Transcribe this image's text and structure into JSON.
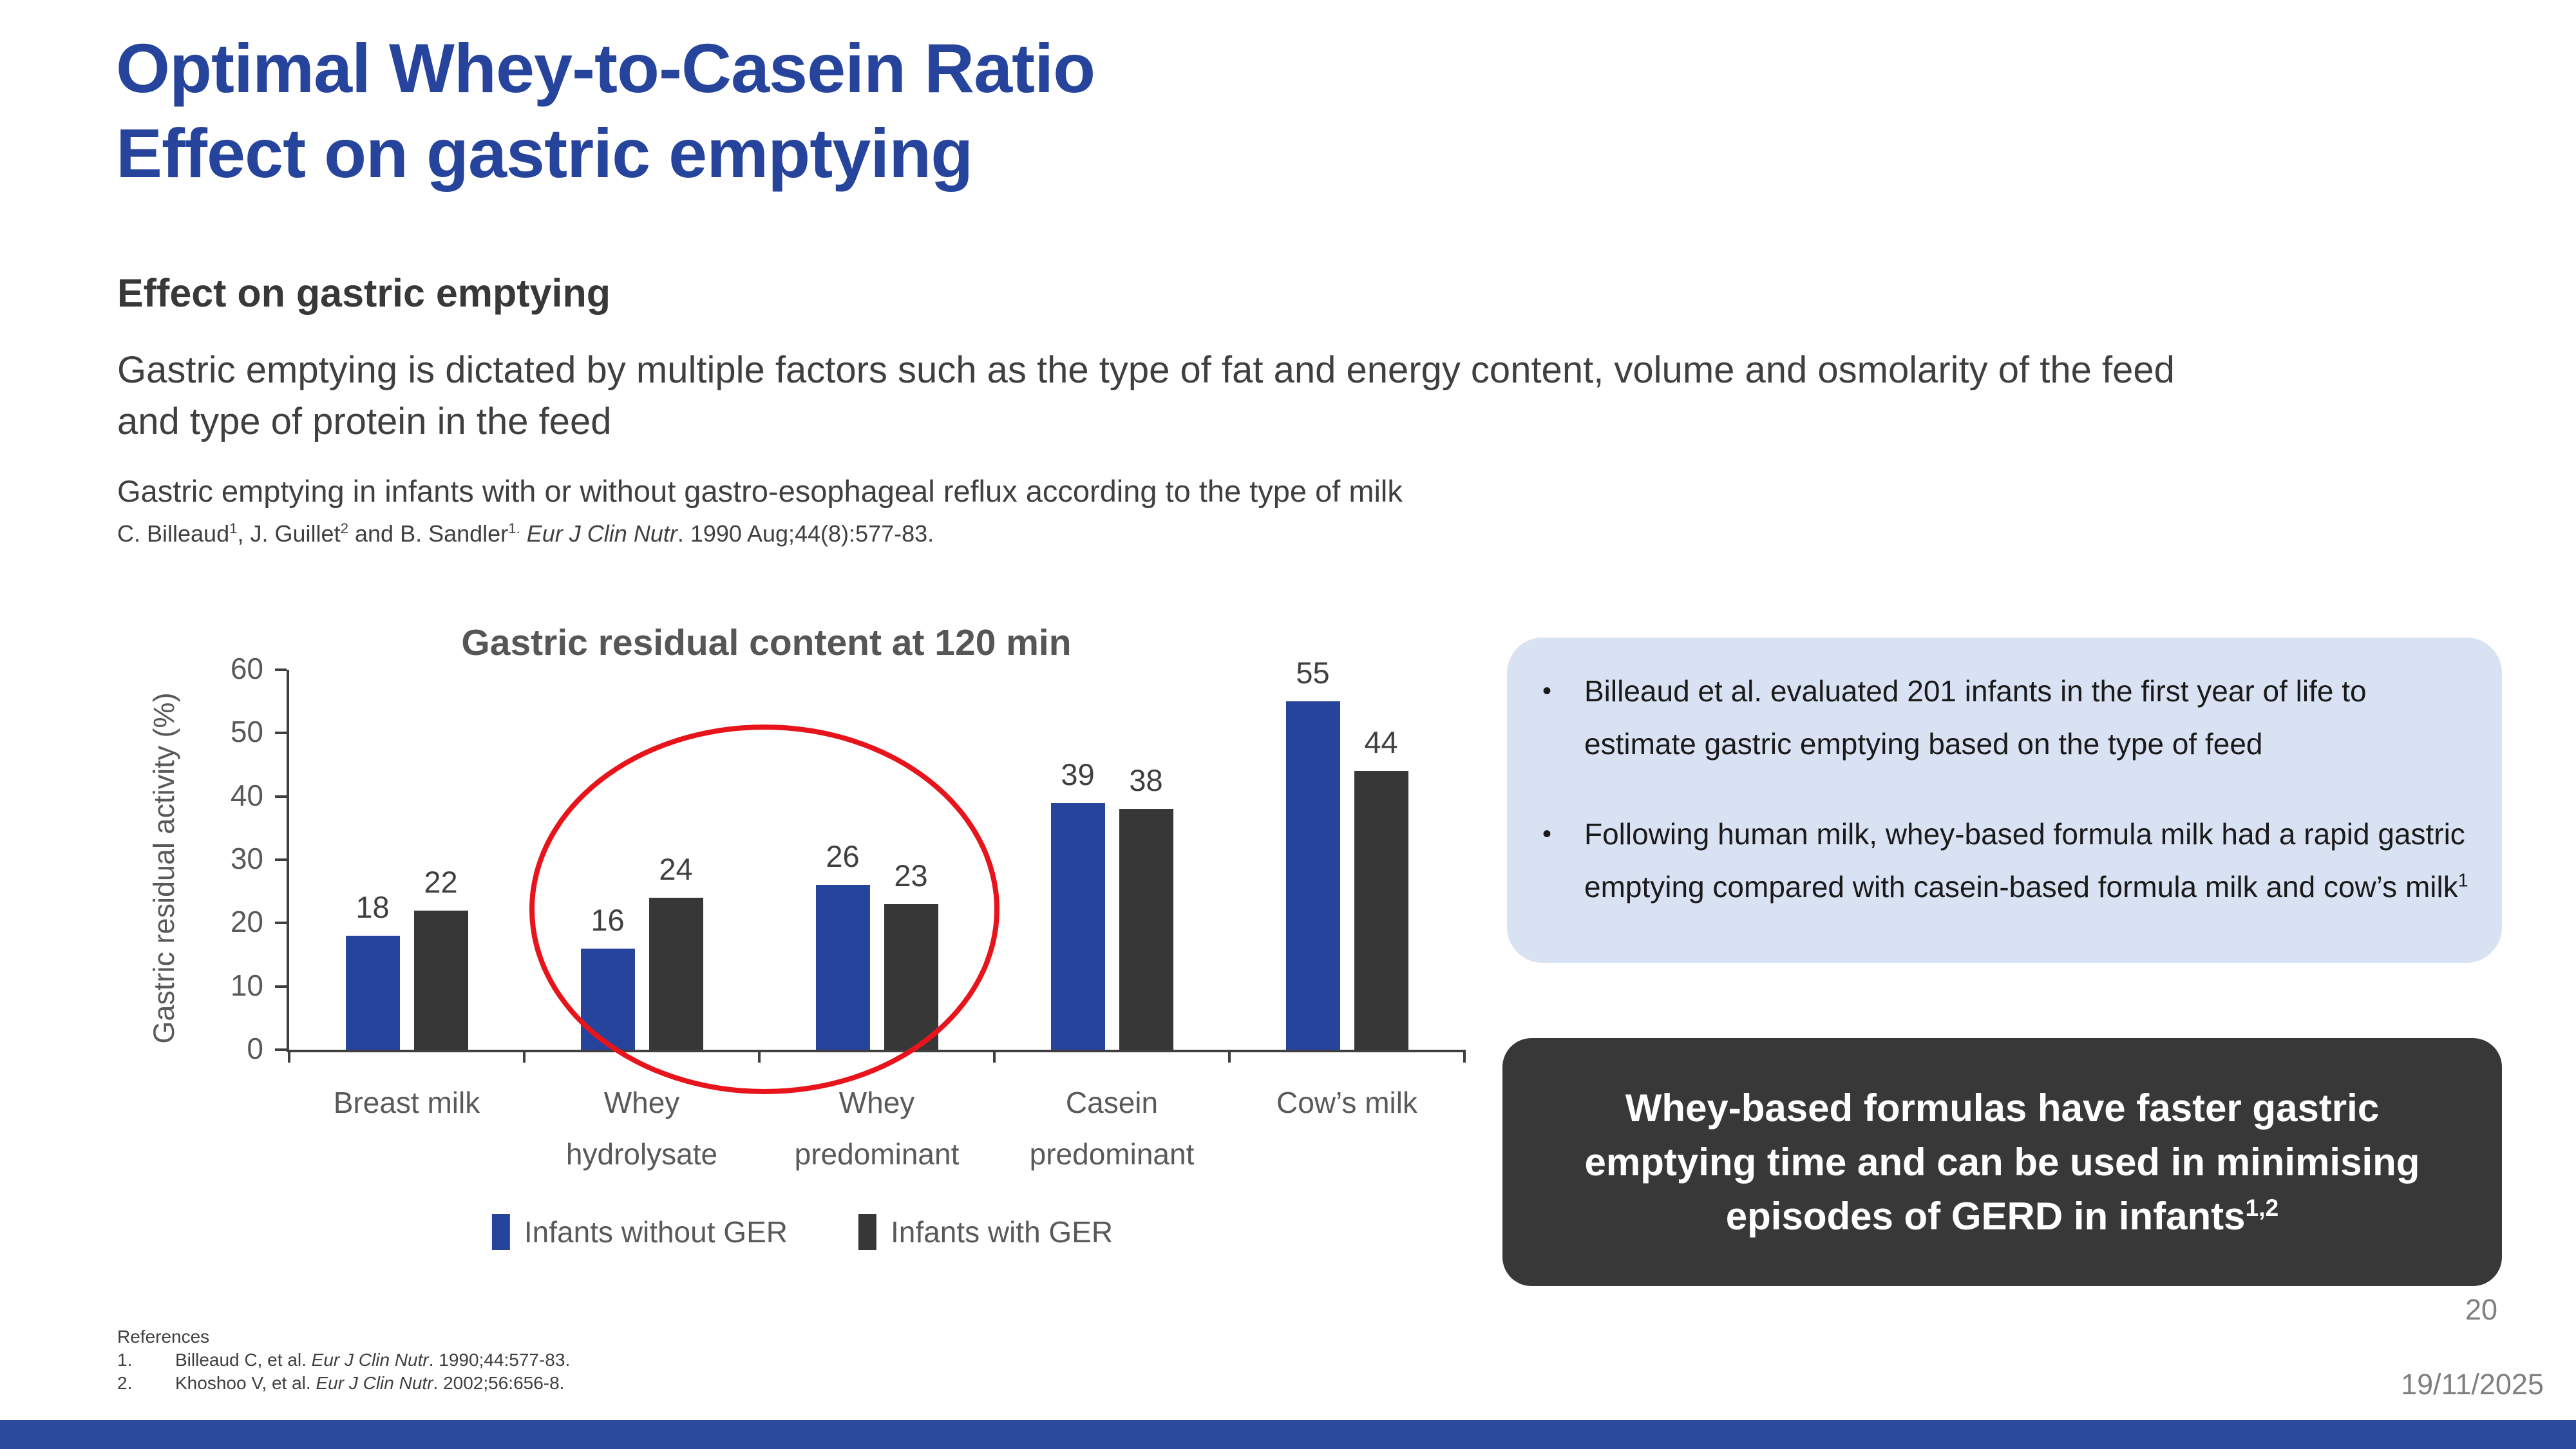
{
  "slide": {
    "title_line1": "Optimal Whey-to-Casein Ratio",
    "title_line2": "Effect on gastric emptying",
    "section_heading": "Effect on gastric emptying",
    "paragraph": "Gastric emptying is dictated by multiple factors such as the type of fat and energy content, volume and osmolarity of the feed and type of protein in the feed",
    "study_line": "Gastric emptying in infants with or without gastro-esophageal reflux according to the type of milk",
    "citation": {
      "p1": "C. Billeaud",
      "s1": "1",
      "p2": ", J. Guillet",
      "s2": "2",
      "p3": " and B. Sandler",
      "s3": "1.",
      "journal": " Eur J Clin Nutr",
      "tail": ". 1990 Aug;44(8):577-83."
    },
    "bullet_char": "•",
    "page_number": "20",
    "date": "19/11/2025"
  },
  "chart_data": {
    "type": "bar",
    "title": "Gastric residual content at 120 min",
    "xlabel": "",
    "ylabel": "Gastric residual activity (%)",
    "ylim": [
      0,
      60
    ],
    "yticks": [
      0,
      10,
      20,
      30,
      40,
      50,
      60
    ],
    "grid": false,
    "legend_position": "bottom",
    "categories": [
      "Breast milk",
      "Whey hydrolysate",
      "Whey predominant",
      "Casein predominant",
      "Cow’s milk"
    ],
    "categories_lines": [
      [
        "Breast milk"
      ],
      [
        "Whey",
        "hydrolysate"
      ],
      [
        "Whey",
        "predominant"
      ],
      [
        "Casein",
        "predominant"
      ],
      [
        "Cow’s milk"
      ]
    ],
    "series": [
      {
        "name": "Infants without GER",
        "color": "#26449C",
        "values": [
          18,
          16,
          26,
          39,
          55
        ]
      },
      {
        "name": "Infants with GER",
        "color": "#373737",
        "values": [
          22,
          24,
          23,
          38,
          44
        ]
      }
    ],
    "annotation": {
      "shape": "ellipse",
      "color": "#E8141C",
      "around_categories": [
        "Whey hydrolysate",
        "Whey predominant"
      ]
    }
  },
  "info_box": {
    "bullets": [
      {
        "text": "Billeaud et al. evaluated 201 infants in the first year of life to estimate gastric emptying based on the type of feed",
        "sup": ""
      },
      {
        "text": "Following human milk, whey-based formula milk had a rapid gastric emptying compared with casein-based formula milk and cow’s milk",
        "sup": "1"
      }
    ]
  },
  "key_message_box": {
    "text": "Whey-based formulas have faster gastric emptying time and can be used in minimising episodes of GERD in infants",
    "sup": "1,2"
  },
  "references": {
    "label": "References",
    "items": [
      {
        "num": "1.",
        "pre": "Billeaud C, et al. ",
        "journal": "Eur J Clin Nutr",
        "post": ". 1990;44:577-83."
      },
      {
        "num": "2.",
        "pre": "Khoshoo V, et al. ",
        "journal": "Eur J Clin Nutr",
        "post": ". 2002;56:656-8."
      }
    ]
  },
  "colors": {
    "title_blue": "#26449C",
    "bar_blue": "#26449C",
    "bar_dark": "#373737",
    "info_box_bg": "#D9E2F3",
    "key_box_bg": "#383838",
    "bottom_bar_blue": "#2B4A9B",
    "chart_text_gray": "#595959",
    "annotation_red": "#E8141C"
  }
}
